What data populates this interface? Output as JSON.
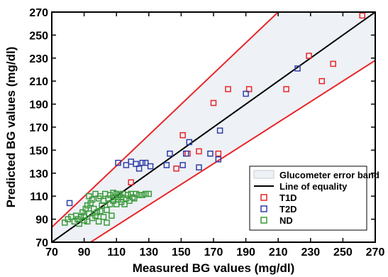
{
  "chart_data": {
    "type": "scatter",
    "xlabel": "Measured BG values (mg/dl)",
    "ylabel": "Predicted BG values (mg/dl)",
    "xlim": [
      70,
      270
    ],
    "ylim": [
      70,
      270
    ],
    "xticks": [
      70,
      90,
      110,
      130,
      150,
      170,
      190,
      210,
      230,
      250,
      270
    ],
    "yticks": [
      70,
      90,
      110,
      130,
      150,
      170,
      190,
      210,
      230,
      250,
      270
    ],
    "grid": false,
    "legend_position": "bottom-right",
    "error_band": {
      "name": "Glucometer error band",
      "lower": [
        [
          94,
          70
        ],
        [
          270,
          228
        ]
      ],
      "upper": [
        [
          70,
          83
        ],
        [
          210,
          270
        ]
      ],
      "fill": "#eef1f5",
      "line_color": "#e8262a"
    },
    "equality_line": {
      "name": "Line of equality",
      "points": [
        [
          70,
          70
        ],
        [
          270,
          270
        ]
      ],
      "color": "#000000"
    },
    "series": [
      {
        "name": "T1D",
        "color": "#e8262a",
        "marker": "square-open",
        "points": [
          [
            262,
            267
          ],
          [
            229,
            232
          ],
          [
            244,
            225
          ],
          [
            237,
            210
          ],
          [
            215,
            203
          ],
          [
            192,
            203
          ],
          [
            179,
            203
          ],
          [
            170,
            191
          ],
          [
            151,
            163
          ],
          [
            161,
            149
          ],
          [
            154,
            147
          ],
          [
            173,
            147
          ],
          [
            147,
            134
          ],
          [
            119,
            122
          ]
        ]
      },
      {
        "name": "T2D",
        "color": "#2e3fa8",
        "marker": "square-open",
        "points": [
          [
            222,
            221
          ],
          [
            190,
            199
          ],
          [
            174,
            167
          ],
          [
            155,
            157
          ],
          [
            153,
            147
          ],
          [
            168,
            147
          ],
          [
            143,
            147
          ],
          [
            111,
            139
          ],
          [
            116,
            137
          ],
          [
            119,
            140
          ],
          [
            122,
            138
          ],
          [
            126,
            139
          ],
          [
            128,
            139
          ],
          [
            131,
            136
          ],
          [
            124,
            134
          ],
          [
            141,
            137
          ],
          [
            161,
            135
          ],
          [
            173,
            142
          ],
          [
            81,
            104
          ],
          [
            151,
            137
          ]
        ]
      },
      {
        "name": "ND",
        "color": "#3a9a3a",
        "marker": "square-open",
        "points": [
          [
            78,
            87
          ],
          [
            80,
            90
          ],
          [
            82,
            92
          ],
          [
            84,
            88
          ],
          [
            85,
            93
          ],
          [
            86,
            90
          ],
          [
            87,
            86
          ],
          [
            88,
            92
          ],
          [
            89,
            96
          ],
          [
            90,
            89
          ],
          [
            90,
            93
          ],
          [
            91,
            99
          ],
          [
            92,
            88
          ],
          [
            93,
            95
          ],
          [
            93,
            110
          ],
          [
            94,
            104
          ],
          [
            95,
            91
          ],
          [
            95,
            107
          ],
          [
            96,
            99
          ],
          [
            97,
            112
          ],
          [
            98,
            96
          ],
          [
            99,
            108
          ],
          [
            99,
            88
          ],
          [
            100,
            110
          ],
          [
            101,
            102
          ],
          [
            102,
            106
          ],
          [
            102,
            92
          ],
          [
            103,
            112
          ],
          [
            104,
            98
          ],
          [
            104,
            87
          ],
          [
            105,
            108
          ],
          [
            106,
            103
          ],
          [
            106,
            111
          ],
          [
            107,
            93
          ],
          [
            108,
            113
          ],
          [
            108,
            106
          ],
          [
            109,
            109
          ],
          [
            110,
            112
          ],
          [
            110,
            103
          ],
          [
            111,
            107
          ],
          [
            112,
            111
          ],
          [
            113,
            105
          ],
          [
            113,
            109
          ],
          [
            114,
            112
          ],
          [
            115,
            103
          ],
          [
            116,
            108
          ],
          [
            117,
            111
          ],
          [
            118,
            106
          ],
          [
            119,
            112
          ],
          [
            120,
            109
          ],
          [
            121,
            108
          ],
          [
            122,
            112
          ],
          [
            124,
            111
          ],
          [
            126,
            111
          ],
          [
            128,
            112
          ],
          [
            130,
            112
          ],
          [
            97,
            93
          ],
          [
            100,
            97
          ],
          [
            92,
            102
          ]
        ]
      }
    ]
  }
}
